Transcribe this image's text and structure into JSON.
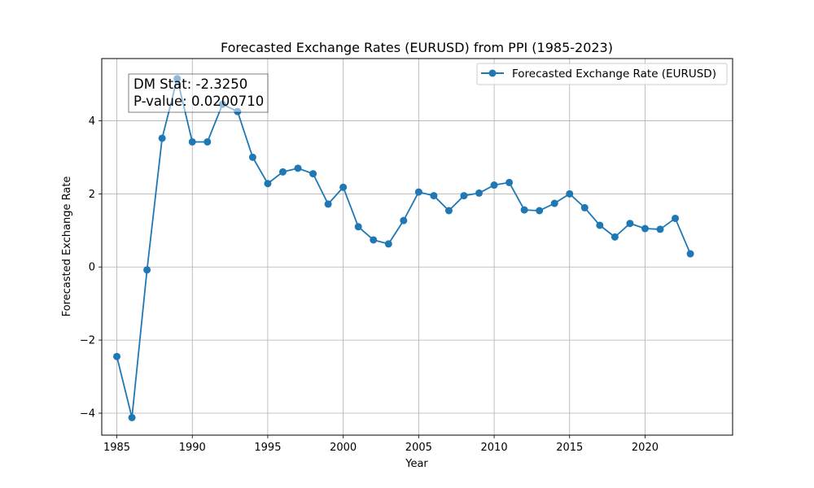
{
  "chart_data": {
    "type": "line",
    "title": "Forecasted Exchange Rates (EURUSD) from PPI (1985-2023)",
    "xlabel": "Year",
    "ylabel": "Forecasted Exchange Rate",
    "xlim": [
      1984,
      2025.8
    ],
    "ylim": [
      -4.6,
      5.7
    ],
    "xticks": [
      1985,
      1990,
      1995,
      2000,
      2005,
      2010,
      2015,
      2020
    ],
    "yticks": [
      -4,
      -2,
      0,
      2,
      4
    ],
    "grid": true,
    "legend_position": "top-right",
    "series": [
      {
        "name": "Forecasted Exchange Rate (EURUSD)",
        "color": "#1f77b4",
        "marker": "circle",
        "x": [
          1985,
          1986,
          1987,
          1988,
          1989,
          1990,
          1991,
          1992,
          1993,
          1994,
          1995,
          1996,
          1997,
          1998,
          1999,
          2000,
          2001,
          2002,
          2003,
          2004,
          2005,
          2006,
          2007,
          2008,
          2009,
          2010,
          2011,
          2012,
          2013,
          2014,
          2015,
          2016,
          2017,
          2018,
          2019,
          2020,
          2021,
          2022,
          2023
        ],
        "values": [
          -2.45,
          -4.12,
          -0.08,
          3.52,
          5.15,
          3.42,
          3.42,
          4.45,
          4.25,
          3.0,
          2.28,
          2.6,
          2.7,
          2.55,
          1.72,
          2.18,
          1.1,
          0.74,
          0.63,
          1.27,
          2.05,
          1.95,
          1.54,
          1.95,
          2.02,
          2.24,
          2.31,
          1.56,
          1.54,
          1.74,
          2.0,
          1.62,
          1.14,
          0.82,
          1.19,
          1.05,
          1.03,
          1.33,
          0.36
        ]
      }
    ],
    "annotation": {
      "dm_stat": "DM Stat: -2.3250",
      "p_value": "P-value: 0.0200710"
    }
  }
}
